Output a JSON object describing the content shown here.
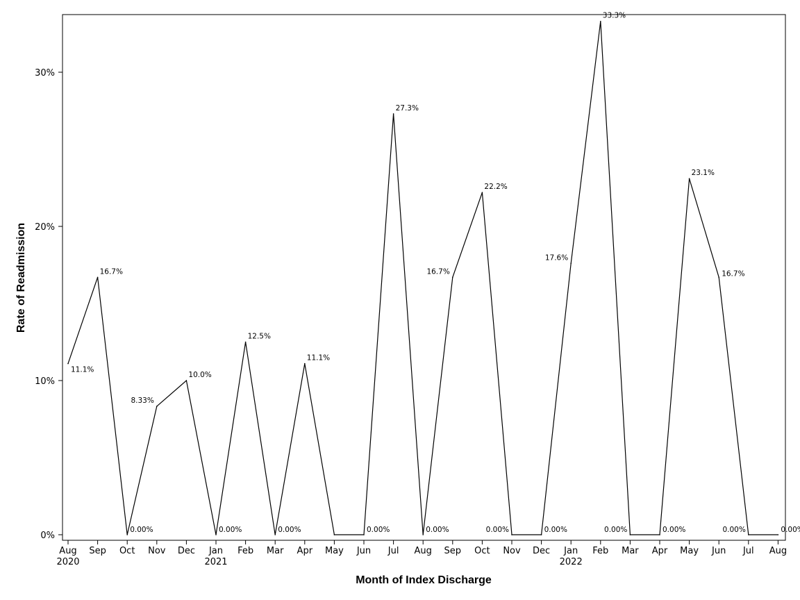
{
  "chart_data": {
    "type": "line",
    "title": "",
    "xlabel": "Month of Index Discharge",
    "ylabel": "Rate of Readmission",
    "ylim": [
      0,
      0.33
    ],
    "yticks": [
      0,
      0.1,
      0.2,
      0.3
    ],
    "ytick_labels": [
      "0%",
      "10%",
      "20%",
      "30%"
    ],
    "grid": false,
    "legend": "none",
    "line_color": "#000000",
    "x": [
      "Aug 2020",
      "Sep 2020",
      "Oct 2020",
      "Nov 2020",
      "Dec 2020",
      "Jan 2021",
      "Feb 2021",
      "Mar 2021",
      "Apr 2021",
      "May 2021",
      "Jun 2021",
      "Jul 2021",
      "Aug 2021",
      "Sep 2021",
      "Oct 2021",
      "Nov 2021",
      "Dec 2021",
      "Jan 2022",
      "Feb 2022",
      "Mar 2022",
      "Apr 2022",
      "May 2022",
      "Jun 2022",
      "Jul 2022",
      "Aug 2022"
    ],
    "xtick_month_labels": [
      "Aug",
      "Sep",
      "Oct",
      "Nov",
      "Dec",
      "Jan",
      "Feb",
      "Mar",
      "Apr",
      "May",
      "Jun",
      "Jul",
      "Aug",
      "Sep",
      "Oct",
      "Nov",
      "Dec",
      "Jan",
      "Feb",
      "Mar",
      "Apr",
      "May",
      "Jun",
      "Jul",
      "Aug"
    ],
    "xtick_year_labels": [
      "2020",
      "",
      "",
      "",
      "",
      "2021",
      "",
      "",
      "",
      "",
      "",
      "",
      "",
      "",
      "",
      "",
      "",
      "2022",
      "",
      "",
      "",
      "",
      "",
      "",
      ""
    ],
    "values": [
      0.111,
      0.167,
      0,
      0.0833,
      0.1,
      0,
      0.125,
      0,
      0.111,
      0,
      0,
      0.273,
      0,
      0.167,
      0.222,
      0,
      0,
      0.176,
      0.333,
      0,
      0,
      0.231,
      0.167,
      0,
      0
    ],
    "data_labels": [
      "11.1%",
      "16.7%",
      "0.00%",
      "8.33%",
      "10.0%",
      "0.00%",
      "12.5%",
      "0.00%",
      "11.1%",
      "",
      "0.00%",
      "27.3%",
      "0.00%",
      "16.7%",
      "22.2%",
      "0.00%",
      "0.00%",
      "17.6%",
      "33.3%",
      "0.00%",
      "0.00%",
      "23.1%",
      "16.7%",
      "0.00%",
      "0.00%"
    ]
  }
}
